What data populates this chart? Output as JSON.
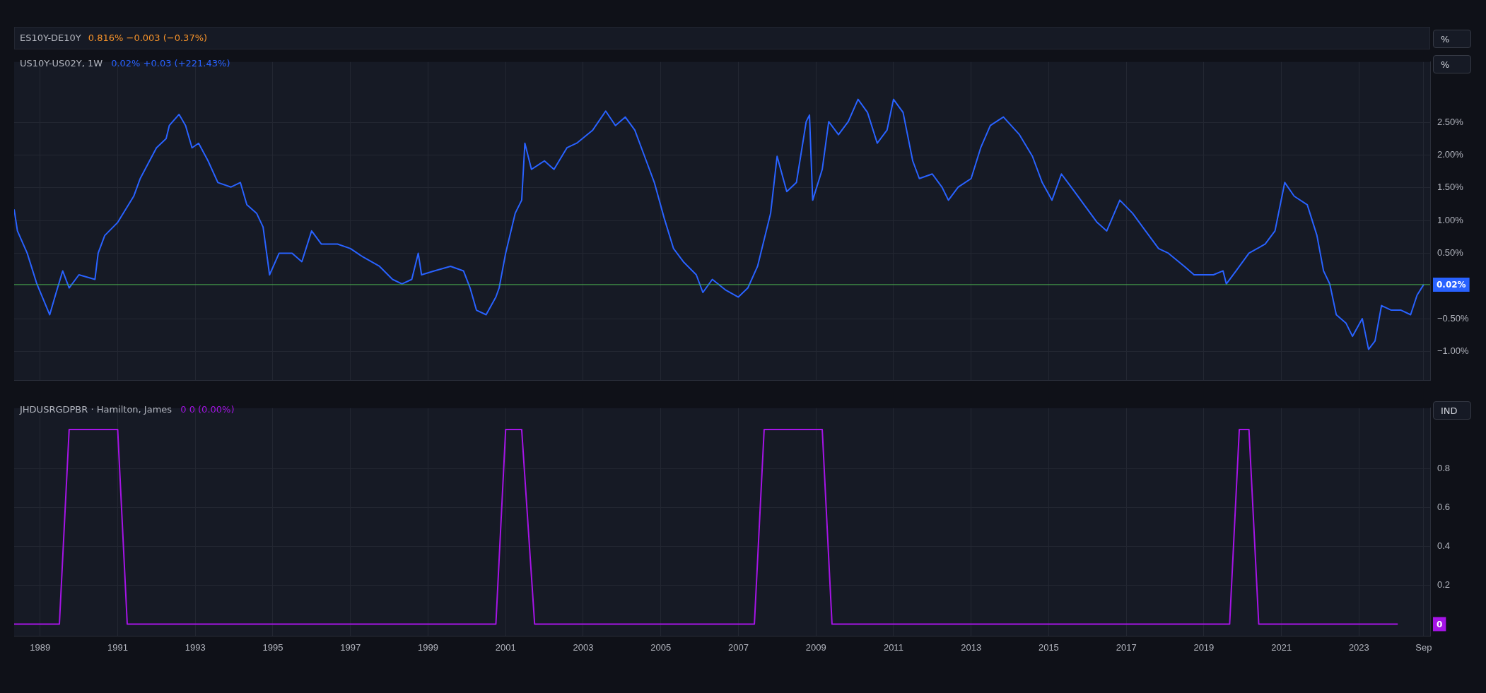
{
  "chart_data": [
    {
      "type": "line",
      "title": "US10Y-US02Y, 1W",
      "subtitle": "0.02%  +0.03 (+221.43%)",
      "annotations": [
        "ES10Y-DE10Y",
        "0.816%  −0.003 (−0.37%)",
        "%",
        "%"
      ],
      "xlim": [
        "1988-05",
        "2024-11"
      ],
      "xticks": [
        "1989",
        "1991",
        "1993",
        "1995",
        "1997",
        "1999",
        "2001",
        "2003",
        "2005",
        "2007",
        "2009",
        "2011",
        "2013",
        "2015",
        "2017",
        "2019",
        "2021",
        "2023",
        "2024-09"
      ],
      "ylim": [
        -1.44,
        3.42
      ],
      "yticks": [
        {
          "value": -1,
          "label": "−1.00%"
        },
        {
          "value": -0.5,
          "label": "−0.50%"
        },
        {
          "value": 0.5,
          "label": "0.50%"
        },
        {
          "value": 1,
          "label": "1.00%"
        },
        {
          "value": 1.5,
          "label": "1.50%"
        },
        {
          "value": 2,
          "label": "2.00%"
        },
        {
          "value": 2.5,
          "label": "2.50%"
        }
      ],
      "grid": true,
      "legend": false,
      "marker": "none",
      "line_style": "solid",
      "tick_labels": "y",
      "ref_lines": [
        {
          "axis": "y",
          "value": 0.02,
          "label": "0.02%",
          "color": "#4caf50"
        }
      ],
      "series": [
        {
          "color": "#2962ff",
          "x": [
            "1988-05",
            "1988-06",
            "1988-09",
            "1988-12",
            "1989-04",
            "1989-06",
            "1989-08",
            "1989-10",
            "1990-01",
            "1990-06",
            "1990-07",
            "1990-09",
            "1991-01",
            "1991-06",
            "1991-08",
            "1992-01",
            "1992-04",
            "1992-05",
            "1992-08",
            "1992-10",
            "1992-12",
            "1993-02",
            "1993-05",
            "1993-08",
            "1993-12",
            "1994-03",
            "1994-05",
            "1994-08",
            "1994-10",
            "1994-12",
            "1995-03",
            "1995-07",
            "1995-10",
            "1996-01",
            "1996-04",
            "1996-09",
            "1997-01",
            "1997-05",
            "1997-10",
            "1998-02",
            "1998-05",
            "1998-08",
            "1998-10",
            "1998-11",
            "1999-03",
            "1999-08",
            "1999-12",
            "2000-02",
            "2000-04",
            "2000-07",
            "2000-10",
            "2000-11",
            "2001-01",
            "2001-04",
            "2001-06",
            "2001-07",
            "2001-09",
            "2002-01",
            "2002-04",
            "2002-08",
            "2002-11",
            "2003-04",
            "2003-08",
            "2003-11",
            "2004-02",
            "2004-05",
            "2004-08",
            "2004-11",
            "2005-02",
            "2005-05",
            "2005-08",
            "2005-12",
            "2006-02",
            "2006-05",
            "2006-09",
            "2007-01",
            "2007-04",
            "2007-07",
            "2007-11",
            "2008-01",
            "2008-04",
            "2008-07",
            "2008-10",
            "2008-11",
            "2008-12",
            "2009-03",
            "2009-05",
            "2009-08",
            "2009-11",
            "2010-02",
            "2010-05",
            "2010-08",
            "2010-11",
            "2011-01",
            "2011-04",
            "2011-07",
            "2011-09",
            "2012-01",
            "2012-04",
            "2012-06",
            "2012-09",
            "2013-01",
            "2013-04",
            "2013-07",
            "2013-11",
            "2014-04",
            "2014-08",
            "2014-11",
            "2015-02",
            "2015-05",
            "2015-08",
            "2015-12",
            "2016-04",
            "2016-07",
            "2016-11",
            "2017-03",
            "2017-07",
            "2017-11",
            "2018-02",
            "2018-07",
            "2018-10",
            "2019-04",
            "2019-07",
            "2019-08",
            "2019-11",
            "2020-03",
            "2020-08",
            "2020-11",
            "2021-02",
            "2021-05",
            "2021-09",
            "2021-12",
            "2022-02",
            "2022-04",
            "2022-06",
            "2022-09",
            "2022-11",
            "2023-02",
            "2023-04",
            "2023-06",
            "2023-08",
            "2023-11",
            "2024-02",
            "2024-05",
            "2024-07",
            "2024-09"
          ],
          "values": [
            1.17,
            0.84,
            0.5,
            0.03,
            -0.44,
            -0.1,
            0.23,
            -0.03,
            0.17,
            0.1,
            0.5,
            0.77,
            0.97,
            1.37,
            1.64,
            2.11,
            2.25,
            2.45,
            2.62,
            2.45,
            2.11,
            2.18,
            1.91,
            1.58,
            1.51,
            1.58,
            1.24,
            1.11,
            0.9,
            0.17,
            0.5,
            0.5,
            0.37,
            0.84,
            0.64,
            0.64,
            0.57,
            0.44,
            0.3,
            0.1,
            0.03,
            0.1,
            0.5,
            0.17,
            0.23,
            0.3,
            0.23,
            -0.03,
            -0.37,
            -0.44,
            -0.17,
            -0.03,
            0.5,
            1.11,
            1.31,
            2.18,
            1.78,
            1.91,
            1.78,
            2.11,
            2.18,
            2.38,
            2.67,
            2.45,
            2.58,
            2.38,
            1.98,
            1.58,
            1.04,
            0.57,
            0.37,
            0.17,
            -0.1,
            0.1,
            -0.06,
            -0.17,
            -0.03,
            0.3,
            1.11,
            1.98,
            1.44,
            1.58,
            2.51,
            2.61,
            1.31,
            1.78,
            2.51,
            2.31,
            2.51,
            2.85,
            2.65,
            2.18,
            2.38,
            2.85,
            2.65,
            1.91,
            1.64,
            1.71,
            1.51,
            1.31,
            1.51,
            1.64,
            2.11,
            2.45,
            2.58,
            2.31,
            1.98,
            1.58,
            1.31,
            1.71,
            1.51,
            1.24,
            0.97,
            0.84,
            1.31,
            1.11,
            0.84,
            0.57,
            0.5,
            0.3,
            0.17,
            0.17,
            0.23,
            0.03,
            0.23,
            0.5,
            0.64,
            0.84,
            1.58,
            1.37,
            1.24,
            0.77,
            0.23,
            0.03,
            -0.44,
            -0.57,
            -0.77,
            -0.5,
            -0.97,
            -0.84,
            -0.3,
            -0.37,
            -0.37,
            -0.44,
            -0.14,
            0.02
          ]
        }
      ]
    },
    {
      "type": "line",
      "title": "JHDUSRGDPBR · Hamilton, James",
      "subtitle": "0  0 (0.00%)",
      "annotations": [
        "IND",
        "0"
      ],
      "xlim": [
        "1988-05",
        "2024-11"
      ],
      "xticks": [
        "1989",
        "1991",
        "1993",
        "1995",
        "1997",
        "1999",
        "2001",
        "2003",
        "2005",
        "2007",
        "2009",
        "2011",
        "2013",
        "2015",
        "2017",
        "2019",
        "2021",
        "2023",
        {
          "value": "2024-09",
          "label": "Sep"
        }
      ],
      "ylim": [
        -0.06,
        1.11
      ],
      "yticks": [
        0.2,
        0.4,
        0.6,
        0.8
      ],
      "grid": true,
      "legend": false,
      "marker": "none",
      "line_style": "solid",
      "series": [
        {
          "color": "#a514e6",
          "x": [
            "1988-05",
            "1989-07",
            "1989-10",
            "1991-01",
            "1991-04",
            "2000-10",
            "2001-01",
            "2001-06",
            "2001-10",
            "2007-06",
            "2007-09",
            "2009-03",
            "2009-06",
            "2019-09",
            "2019-12",
            "2020-03",
            "2020-06",
            "2024-01"
          ],
          "values": [
            0,
            0,
            1,
            1,
            0,
            0,
            1,
            1,
            0,
            0,
            1,
            1,
            0,
            0,
            1,
            1,
            0,
            0
          ]
        }
      ]
    }
  ]
}
